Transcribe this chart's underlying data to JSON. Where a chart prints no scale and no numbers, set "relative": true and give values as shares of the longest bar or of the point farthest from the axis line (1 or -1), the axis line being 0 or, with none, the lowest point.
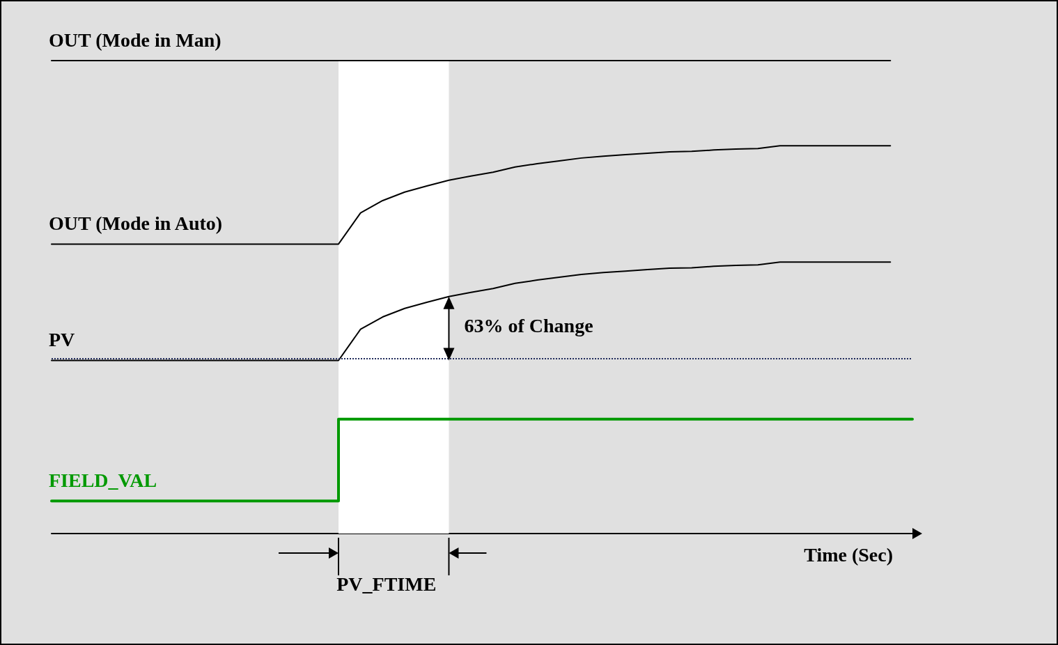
{
  "chart_data": {
    "type": "line",
    "relative": true,
    "xlabel": "Time (Sec)",
    "categories": [
      null,
      null,
      null,
      null,
      null,
      null,
      null,
      null,
      null,
      null,
      null,
      null,
      null,
      null,
      null,
      null,
      null,
      null,
      null,
      null,
      null,
      null,
      null,
      null,
      null,
      null,
      null,
      null,
      null,
      null,
      null,
      null,
      null,
      null,
      null,
      null,
      null,
      null,
      null,
      null
    ],
    "series": [
      {
        "name": "OUT (Mode in Man)",
        "color": "#000000",
        "values": [
          1,
          1,
          1,
          1,
          1,
          1,
          1,
          1,
          1,
          1,
          1,
          1,
          1,
          1,
          1,
          1,
          1,
          1,
          1,
          1,
          1,
          1,
          1,
          1,
          1,
          1,
          1,
          1,
          1,
          1,
          1,
          1,
          1,
          1,
          1,
          1,
          1,
          1,
          1,
          null
        ]
      },
      {
        "name": "OUT (Mode in Auto)",
        "color": "#000000",
        "values": [
          0.612,
          0.612,
          0.612,
          0.612,
          0.612,
          0.612,
          0.612,
          0.612,
          0.612,
          0.612,
          0.612,
          0.612,
          0.612,
          0.612,
          0.678,
          0.704,
          0.722,
          0.735,
          0.747,
          0.756,
          0.764,
          0.775,
          0.782,
          0.788,
          0.794,
          0.798,
          0.801,
          0.804,
          0.807,
          0.808,
          0.811,
          0.813,
          0.814,
          0.82,
          0.82,
          0.82,
          0.82,
          0.82,
          0.82,
          null
        ]
      },
      {
        "name": "PV",
        "color": "#000000",
        "values": [
          0.366,
          0.366,
          0.366,
          0.366,
          0.366,
          0.366,
          0.366,
          0.366,
          0.366,
          0.366,
          0.366,
          0.366,
          0.366,
          0.366,
          0.432,
          0.458,
          0.476,
          0.489,
          0.501,
          0.51,
          0.518,
          0.529,
          0.536,
          0.542,
          0.548,
          0.552,
          0.555,
          0.558,
          0.561,
          0.562,
          0.565,
          0.567,
          0.568,
          0.574,
          0.574,
          0.574,
          0.574,
          0.574,
          0.574,
          null
        ]
      },
      {
        "name": "FIELD_VAL",
        "color": "#009900",
        "type": "step",
        "values": [
          0.069,
          0.069,
          0.069,
          0.069,
          0.069,
          0.069,
          0.069,
          0.069,
          0.069,
          0.069,
          0.069,
          0.069,
          0.069,
          0.242,
          0.242,
          0.242,
          0.242,
          0.242,
          0.242,
          0.242,
          0.242,
          0.242,
          0.242,
          0.242,
          0.242,
          0.242,
          0.242,
          0.242,
          0.242,
          0.242,
          0.242,
          0.242,
          0.242,
          0.242,
          0.242,
          0.242,
          0.242,
          0.242,
          0.242,
          0.242
        ]
      }
    ],
    "ref_lines": [
      {
        "axis": "y",
        "value": 0.366,
        "color": "#1f2a5a",
        "line_style": "dotted"
      }
    ],
    "annotations": [
      "63% of Change",
      "PV_FTIME"
    ],
    "legend": false,
    "marker": "none",
    "line_style": "solid"
  }
}
